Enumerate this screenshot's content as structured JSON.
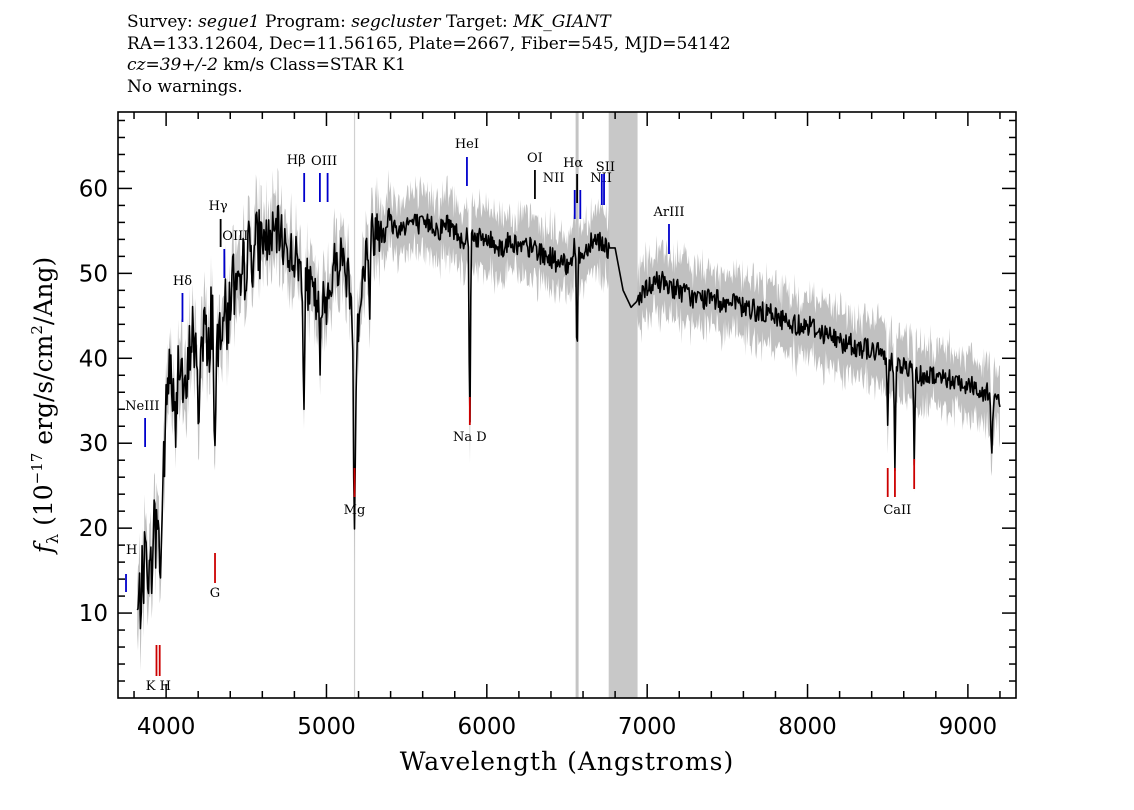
{
  "header": {
    "survey_label": "Survey:",
    "survey": "segue1",
    "program_label": "Program:",
    "program": "segcluster",
    "target_label": "Target:",
    "target": "MK_GIANT",
    "line2": "RA=133.12604, Dec=11.56165, Plate=2667, Fiber=545, MJD=54142",
    "cz": "cz=39+/-2",
    "cz_rest": " km/s Class=STAR K1",
    "line4": "No warnings."
  },
  "chart_data": {
    "type": "line",
    "xlabel": "Wavelength (Angstroms)",
    "ylabel_parts": [
      "f",
      "λ",
      " (10",
      "−17",
      " erg/s/cm",
      "2",
      "/Ang)"
    ],
    "xlim": [
      3700,
      9300
    ],
    "ylim": [
      0,
      69
    ],
    "x_ticks": [
      4000,
      5000,
      6000,
      7000,
      8000,
      9000
    ],
    "x_tick_labels": [
      "4000",
      "5000",
      "6000",
      "7000",
      "8000",
      "9000"
    ],
    "y_ticks": [
      10,
      20,
      30,
      40,
      50,
      60
    ],
    "y_tick_labels": [
      "10",
      "20",
      "30",
      "40",
      "50",
      "60"
    ],
    "grid": false,
    "series": [
      {
        "color": "#000000",
        "x": [
          3820,
          3840,
          3860,
          3880,
          3900,
          3920,
          3940,
          3960,
          3980,
          4000,
          4020,
          4040,
          4060,
          4080,
          4100,
          4120,
          4140,
          4160,
          4180,
          4200,
          4220,
          4240,
          4260,
          4280,
          4300,
          4320,
          4340,
          4360,
          4380,
          4400,
          4420,
          4440,
          4460,
          4480,
          4500,
          4550,
          4600,
          4650,
          4700,
          4750,
          4800,
          4850,
          4900,
          4950,
          5000,
          5050,
          5100,
          5150,
          5200,
          5250,
          5300,
          5350,
          5400,
          5450,
          5500,
          5550,
          5600,
          5650,
          5700,
          5750,
          5800,
          5850,
          5900,
          5950,
          6000,
          6050,
          6100,
          6150,
          6200,
          6250,
          6300,
          6350,
          6400,
          6450,
          6500,
          6550,
          6600,
          6650,
          6700,
          6750,
          6800,
          6850,
          6900,
          6950,
          7000,
          7050,
          7100,
          7200,
          7300,
          7400,
          7500,
          7600,
          7700,
          7800,
          7900,
          8000,
          8100,
          8200,
          8300,
          8400,
          8500,
          8600,
          8700,
          8800,
          8900,
          9000,
          9100,
          9200
        ],
        "y": [
          9.5,
          12,
          15,
          18,
          13,
          20,
          24,
          16,
          26,
          33,
          40,
          36,
          30,
          42,
          38,
          34,
          39,
          44,
          41,
          34,
          42,
          45,
          38,
          46,
          44,
          40,
          45,
          47,
          43,
          48,
          49,
          47,
          46,
          50,
          52,
          53,
          54,
          54,
          55,
          53,
          52,
          50,
          48,
          46,
          47,
          51,
          52,
          48,
          45,
          53,
          55,
          56,
          56,
          55,
          56,
          56,
          55.5,
          56,
          55,
          56,
          55,
          54,
          55,
          54,
          54,
          53.5,
          53,
          54,
          53,
          53,
          53,
          52,
          52,
          51,
          51,
          53,
          52,
          54,
          54,
          53,
          53,
          48,
          46,
          47,
          48,
          49,
          49,
          48,
          47,
          47,
          46.5,
          46,
          45.5,
          45,
          44,
          44,
          43,
          42,
          41.5,
          41,
          40,
          39,
          38,
          38,
          37.5,
          37,
          36,
          35.5
        ]
      }
    ],
    "emission_lines": [
      {
        "label": "H",
        "x": 3750
      },
      {
        "label": "NeIII",
        "x": 3869
      },
      {
        "label": "Hδ",
        "x": 4102
      },
      {
        "label": "Hγ",
        "x": 4340
      },
      {
        "label": "OIII",
        "x": 4363
      },
      {
        "label": "Hβ",
        "x": 4861
      },
      {
        "label": "OIII",
        "x": 4959
      },
      {
        "label": "OIII",
        "x": 5007
      },
      {
        "label": "HeI",
        "x": 5876
      },
      {
        "label": "OI",
        "x": 6300
      },
      {
        "label": "NII",
        "x": 6548
      },
      {
        "label": "Hα",
        "x": 6563
      },
      {
        "label": "NII",
        "x": 6583
      },
      {
        "label": "SII",
        "x": 6717
      },
      {
        "label": "SII",
        "x": 6731
      },
      {
        "label": "ArIII",
        "x": 7136
      }
    ],
    "absorption_lines": [
      {
        "label": "K H",
        "x": 3950
      },
      {
        "label": "G",
        "x": 4305
      },
      {
        "label": "Mg",
        "x": 5175
      },
      {
        "label": "Na D",
        "x": 5894
      },
      {
        "label": "CaII",
        "x": 8542
      }
    ],
    "colors": {
      "spectrum": "#000000",
      "error_band": "#c0c0c0",
      "emission_marker": "#0000cc",
      "absorption_marker": "#cc0000",
      "masked_region": "#c8c8c8",
      "axes": "#000000"
    }
  }
}
